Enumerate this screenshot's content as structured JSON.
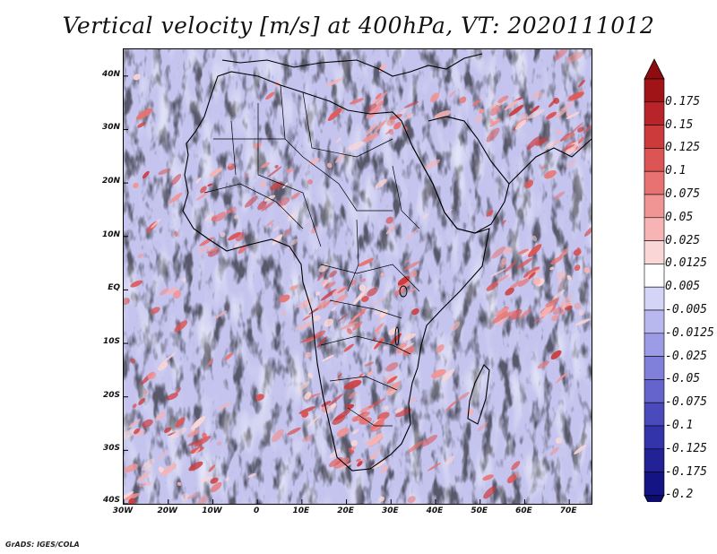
{
  "title": "Vertical velocity [m/s] at 400hPa, VT: 2020111012",
  "map": {
    "lat_labels": [
      "40N",
      "30N",
      "20N",
      "10N",
      "EQ",
      "10S",
      "20S",
      "30S",
      "40S"
    ],
    "lat_values": [
      40,
      30,
      20,
      10,
      0,
      -10,
      -20,
      -30,
      -40
    ],
    "lon_labels": [
      "30W",
      "20W",
      "10W",
      "0",
      "10E",
      "20E",
      "30E",
      "40E",
      "50E",
      "60E",
      "70E"
    ],
    "lon_values": [
      -30,
      -20,
      -10,
      0,
      10,
      20,
      30,
      40,
      50,
      60,
      70
    ],
    "lon_range": [
      -30,
      75
    ],
    "lat_range": [
      -40,
      45
    ]
  },
  "colorbar": {
    "labels": [
      "0.175",
      "0.15",
      "0.125",
      "0.1",
      "0.075",
      "0.05",
      "0.025",
      "0.0125",
      "0.005",
      "-0.005",
      "-0.0125",
      "-0.025",
      "-0.05",
      "-0.075",
      "-0.1",
      "-0.125",
      "-0.175",
      "-0.2"
    ],
    "colors": [
      "#a01418",
      "#b8242a",
      "#cc3a3c",
      "#dc5454",
      "#e87272",
      "#f09494",
      "#f6b4b4",
      "#fad6d6",
      "#ffffff",
      "#d4d4f6",
      "#b8b8ee",
      "#9c9ce6",
      "#8080da",
      "#6464cc",
      "#4a4abc",
      "#3434aa",
      "#222296",
      "#141484"
    ],
    "top_color": "#8c0c10",
    "bottom_color": "#0c0c6c"
  },
  "credit": "GrADS: IGES/COLA"
}
